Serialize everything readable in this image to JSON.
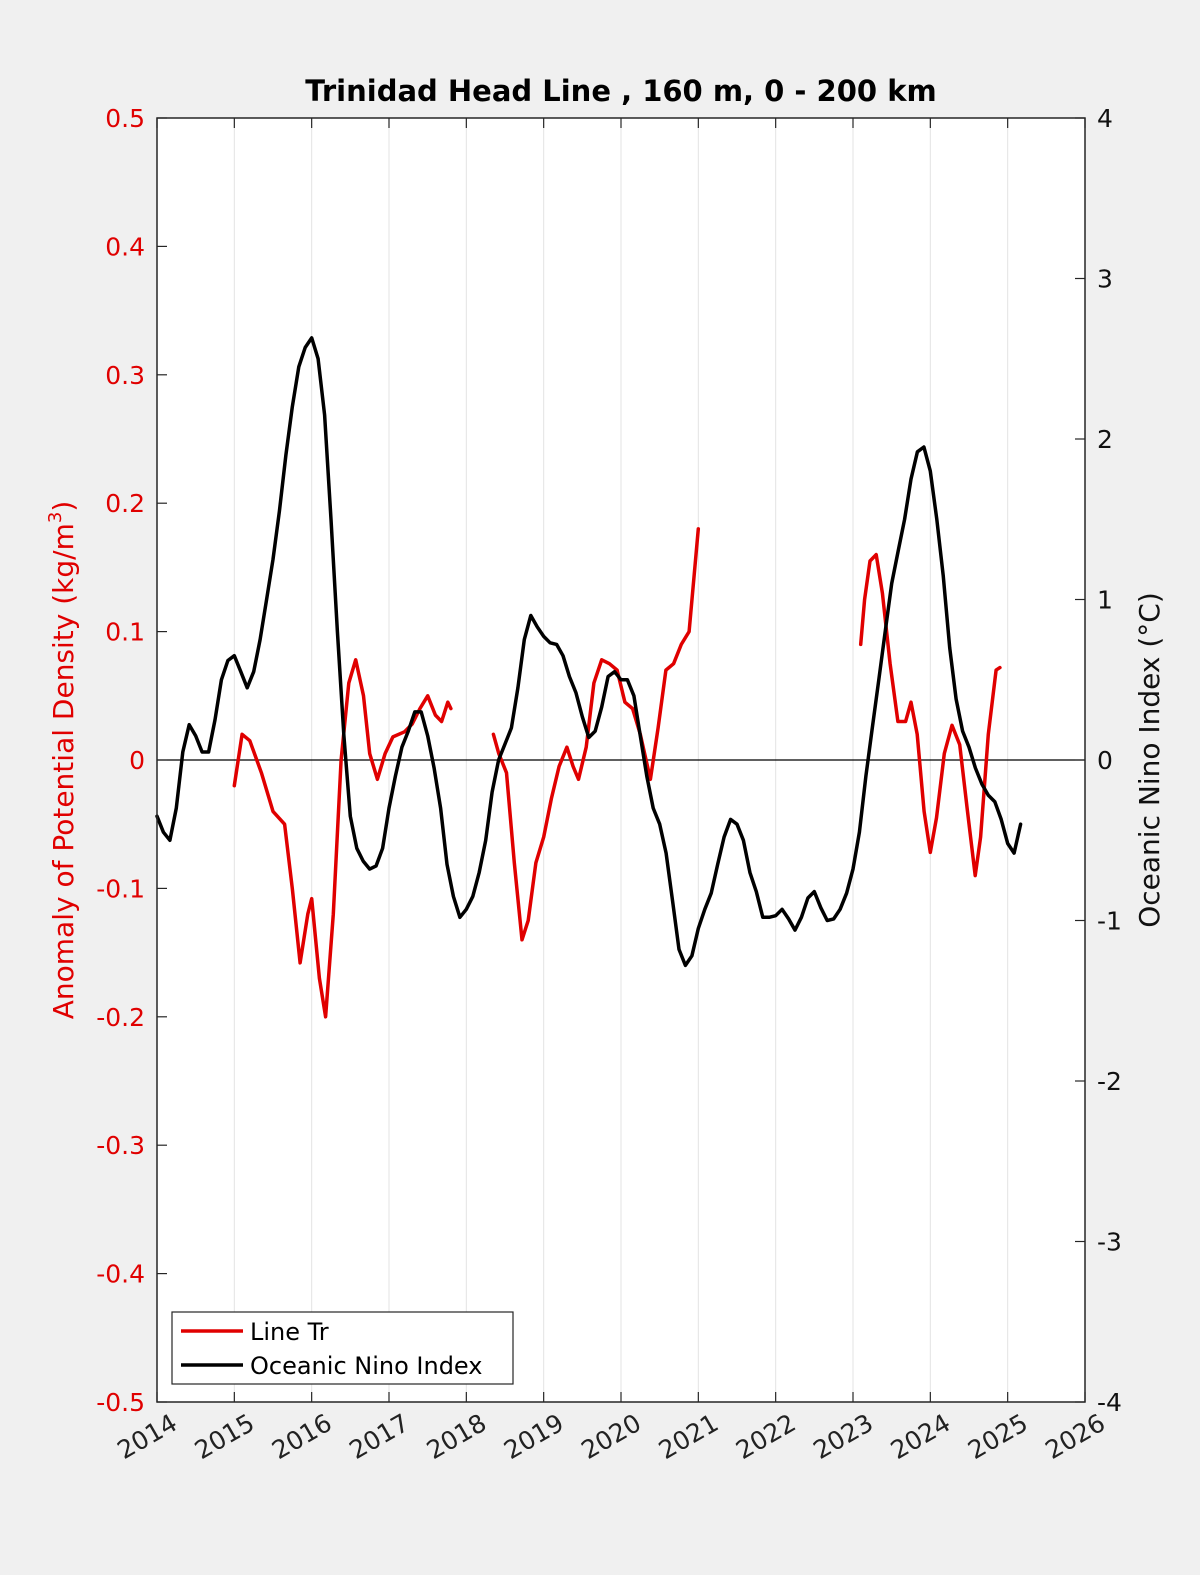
{
  "chart_data": {
    "type": "line",
    "title": "Trinidad Head Line , 160 m, 0 - 200 km",
    "ylabel_left_prefix": "Anomaly of Potential Density (kg/m",
    "ylabel_left_sup": "3",
    "ylabel_left_suffix": ")",
    "ylabel_right": "Oceanic Nino Index (°C)",
    "xlim": [
      2014,
      2026
    ],
    "ylim_left": [
      -0.5,
      0.5
    ],
    "ylim_right": [
      -4,
      4
    ],
    "x_ticks": [
      "2014",
      "2015",
      "2016",
      "2017",
      "2018",
      "2019",
      "2020",
      "2021",
      "2022",
      "2023",
      "2024",
      "2025",
      "2026"
    ],
    "y_ticks_left": [
      "-0.5",
      "-0.4",
      "-0.3",
      "-0.2",
      "-0.1",
      "0",
      "0.1",
      "0.2",
      "0.3",
      "0.4",
      "0.5"
    ],
    "y_ticks_right": [
      "-4",
      "-3",
      "-2",
      "-1",
      "0",
      "1",
      "2",
      "3",
      "4"
    ],
    "grid": "vertical",
    "zero_line": true,
    "legend_position": "bottom-left",
    "colors": {
      "line_tr": "#e00000",
      "oni": "#000000",
      "left_axis": "#e00000",
      "right_axis": "#000000"
    },
    "series": [
      {
        "name": "Line Tr",
        "axis": "left",
        "color": "#e00000",
        "segments": [
          [
            [
              2015.0,
              -0.02
            ],
            [
              2015.1,
              0.02
            ],
            [
              2015.2,
              0.015
            ],
            [
              2015.35,
              -0.01
            ],
            [
              2015.5,
              -0.04
            ],
            [
              2015.65,
              -0.05
            ],
            [
              2015.75,
              -0.1
            ],
            [
              2015.85,
              -0.158
            ],
            [
              2015.95,
              -0.12
            ],
            [
              2016.0,
              -0.108
            ],
            [
              2016.1,
              -0.17
            ],
            [
              2016.18,
              -0.2
            ],
            [
              2016.28,
              -0.12
            ],
            [
              2016.38,
              0.0
            ],
            [
              2016.48,
              0.06
            ],
            [
              2016.57,
              0.078
            ],
            [
              2016.67,
              0.05
            ],
            [
              2016.75,
              0.005
            ],
            [
              2016.85,
              -0.015
            ],
            [
              2016.95,
              0.005
            ],
            [
              2017.05,
              0.018
            ],
            [
              2017.2,
              0.022
            ],
            [
              2017.3,
              0.028
            ],
            [
              2017.4,
              0.04
            ],
            [
              2017.5,
              0.05
            ],
            [
              2017.6,
              0.035
            ],
            [
              2017.68,
              0.03
            ],
            [
              2017.76,
              0.045
            ],
            [
              2017.8,
              0.04
            ]
          ],
          [
            [
              2018.35,
              0.02
            ],
            [
              2018.42,
              0.005
            ],
            [
              2018.52,
              -0.01
            ],
            [
              2018.62,
              -0.08
            ],
            [
              2018.72,
              -0.14
            ],
            [
              2018.8,
              -0.125
            ],
            [
              2018.9,
              -0.08
            ],
            [
              2019.0,
              -0.06
            ],
            [
              2019.1,
              -0.03
            ],
            [
              2019.2,
              -0.005
            ],
            [
              2019.3,
              0.01
            ],
            [
              2019.38,
              -0.005
            ],
            [
              2019.45,
              -0.015
            ],
            [
              2019.55,
              0.01
            ],
            [
              2019.65,
              0.06
            ],
            [
              2019.75,
              0.078
            ],
            [
              2019.85,
              0.075
            ],
            [
              2019.95,
              0.07
            ],
            [
              2020.05,
              0.045
            ],
            [
              2020.15,
              0.04
            ],
            [
              2020.25,
              0.02
            ],
            [
              2020.38,
              -0.015
            ],
            [
              2020.48,
              0.025
            ],
            [
              2020.58,
              0.07
            ],
            [
              2020.68,
              0.075
            ],
            [
              2020.78,
              0.09
            ],
            [
              2020.88,
              0.1
            ],
            [
              2020.97,
              0.16
            ],
            [
              2021.0,
              0.18
            ]
          ],
          [
            [
              2023.1,
              0.09
            ],
            [
              2023.15,
              0.125
            ],
            [
              2023.22,
              0.155
            ],
            [
              2023.3,
              0.16
            ],
            [
              2023.38,
              0.13
            ],
            [
              2023.48,
              0.075
            ],
            [
              2023.58,
              0.03
            ],
            [
              2023.68,
              0.03
            ],
            [
              2023.75,
              0.045
            ],
            [
              2023.83,
              0.02
            ],
            [
              2023.92,
              -0.04
            ],
            [
              2024.0,
              -0.072
            ],
            [
              2024.08,
              -0.045
            ],
            [
              2024.18,
              0.005
            ],
            [
              2024.28,
              0.027
            ],
            [
              2024.38,
              0.012
            ],
            [
              2024.48,
              -0.04
            ],
            [
              2024.58,
              -0.09
            ],
            [
              2024.65,
              -0.06
            ],
            [
              2024.75,
              0.02
            ],
            [
              2024.85,
              0.07
            ],
            [
              2024.9,
              0.072
            ]
          ]
        ]
      },
      {
        "name": "Oceanic Nino Index",
        "axis": "right",
        "color": "#000000",
        "segments": [
          [
            [
              2014.0,
              -0.35
            ],
            [
              2014.083,
              -0.45
            ],
            [
              2014.167,
              -0.5
            ],
            [
              2014.25,
              -0.3
            ],
            [
              2014.333,
              0.05
            ],
            [
              2014.417,
              0.22
            ],
            [
              2014.5,
              0.15
            ],
            [
              2014.583,
              0.05
            ],
            [
              2014.667,
              0.05
            ],
            [
              2014.75,
              0.25
            ],
            [
              2014.833,
              0.5
            ],
            [
              2014.917,
              0.62
            ],
            [
              2015.0,
              0.65
            ],
            [
              2015.083,
              0.55
            ],
            [
              2015.167,
              0.45
            ],
            [
              2015.25,
              0.55
            ],
            [
              2015.333,
              0.75
            ],
            [
              2015.417,
              1.0
            ],
            [
              2015.5,
              1.25
            ],
            [
              2015.583,
              1.55
            ],
            [
              2015.667,
              1.9
            ],
            [
              2015.75,
              2.2
            ],
            [
              2015.833,
              2.45
            ],
            [
              2015.917,
              2.57
            ],
            [
              2016.0,
              2.63
            ],
            [
              2016.083,
              2.5
            ],
            [
              2016.167,
              2.15
            ],
            [
              2016.25,
              1.5
            ],
            [
              2016.333,
              0.8
            ],
            [
              2016.417,
              0.15
            ],
            [
              2016.5,
              -0.35
            ],
            [
              2016.583,
              -0.55
            ],
            [
              2016.667,
              -0.63
            ],
            [
              2016.75,
              -0.68
            ],
            [
              2016.833,
              -0.66
            ],
            [
              2016.917,
              -0.55
            ],
            [
              2017.0,
              -0.3
            ],
            [
              2017.083,
              -0.1
            ],
            [
              2017.167,
              0.08
            ],
            [
              2017.25,
              0.18
            ],
            [
              2017.333,
              0.3
            ],
            [
              2017.417,
              0.3
            ],
            [
              2017.5,
              0.15
            ],
            [
              2017.583,
              -0.05
            ],
            [
              2017.667,
              -0.3
            ],
            [
              2017.75,
              -0.65
            ],
            [
              2017.833,
              -0.85
            ],
            [
              2017.917,
              -0.98
            ],
            [
              2018.0,
              -0.93
            ],
            [
              2018.083,
              -0.85
            ],
            [
              2018.167,
              -0.7
            ],
            [
              2018.25,
              -0.5
            ],
            [
              2018.333,
              -0.2
            ],
            [
              2018.417,
              0.0
            ],
            [
              2018.5,
              0.1
            ],
            [
              2018.583,
              0.2
            ],
            [
              2018.667,
              0.45
            ],
            [
              2018.75,
              0.75
            ],
            [
              2018.833,
              0.9
            ],
            [
              2018.917,
              0.83
            ],
            [
              2019.0,
              0.77
            ],
            [
              2019.083,
              0.73
            ],
            [
              2019.167,
              0.72
            ],
            [
              2019.25,
              0.65
            ],
            [
              2019.333,
              0.52
            ],
            [
              2019.417,
              0.42
            ],
            [
              2019.5,
              0.27
            ],
            [
              2019.583,
              0.14
            ],
            [
              2019.667,
              0.18
            ],
            [
              2019.75,
              0.33
            ],
            [
              2019.833,
              0.52
            ],
            [
              2019.917,
              0.55
            ],
            [
              2020.0,
              0.5
            ],
            [
              2020.083,
              0.5
            ],
            [
              2020.167,
              0.4
            ],
            [
              2020.25,
              0.15
            ],
            [
              2020.333,
              -0.1
            ],
            [
              2020.417,
              -0.3
            ],
            [
              2020.5,
              -0.4
            ],
            [
              2020.583,
              -0.58
            ],
            [
              2020.667,
              -0.88
            ],
            [
              2020.75,
              -1.18
            ],
            [
              2020.833,
              -1.28
            ],
            [
              2020.917,
              -1.22
            ],
            [
              2021.0,
              -1.05
            ],
            [
              2021.083,
              -0.93
            ],
            [
              2021.167,
              -0.83
            ],
            [
              2021.25,
              -0.65
            ],
            [
              2021.333,
              -0.48
            ],
            [
              2021.417,
              -0.37
            ],
            [
              2021.5,
              -0.4
            ],
            [
              2021.583,
              -0.5
            ],
            [
              2021.667,
              -0.7
            ],
            [
              2021.75,
              -0.82
            ],
            [
              2021.833,
              -0.98
            ],
            [
              2021.917,
              -0.98
            ],
            [
              2022.0,
              -0.97
            ],
            [
              2022.083,
              -0.93
            ],
            [
              2022.167,
              -0.99
            ],
            [
              2022.25,
              -1.06
            ],
            [
              2022.333,
              -0.98
            ],
            [
              2022.417,
              -0.86
            ],
            [
              2022.5,
              -0.82
            ],
            [
              2022.583,
              -0.92
            ],
            [
              2022.667,
              -1.0
            ],
            [
              2022.75,
              -0.99
            ],
            [
              2022.833,
              -0.93
            ],
            [
              2022.917,
              -0.83
            ],
            [
              2023.0,
              -0.68
            ],
            [
              2023.083,
              -0.45
            ],
            [
              2023.167,
              -0.1
            ],
            [
              2023.25,
              0.2
            ],
            [
              2023.333,
              0.5
            ],
            [
              2023.417,
              0.8
            ],
            [
              2023.5,
              1.1
            ],
            [
              2023.583,
              1.3
            ],
            [
              2023.667,
              1.5
            ],
            [
              2023.75,
              1.75
            ],
            [
              2023.833,
              1.92
            ],
            [
              2023.917,
              1.95
            ],
            [
              2024.0,
              1.8
            ],
            [
              2024.083,
              1.5
            ],
            [
              2024.167,
              1.15
            ],
            [
              2024.25,
              0.7
            ],
            [
              2024.333,
              0.38
            ],
            [
              2024.417,
              0.18
            ],
            [
              2024.5,
              0.08
            ],
            [
              2024.583,
              -0.05
            ],
            [
              2024.667,
              -0.15
            ],
            [
              2024.75,
              -0.22
            ],
            [
              2024.833,
              -0.26
            ],
            [
              2024.917,
              -0.37
            ],
            [
              2025.0,
              -0.52
            ],
            [
              2025.083,
              -0.58
            ],
            [
              2025.167,
              -0.4
            ]
          ]
        ]
      }
    ]
  },
  "legend": {
    "items": [
      {
        "label": "Line Tr",
        "color": "#e00000"
      },
      {
        "label": "Oceanic Nino Index",
        "color": "#000000"
      }
    ]
  }
}
